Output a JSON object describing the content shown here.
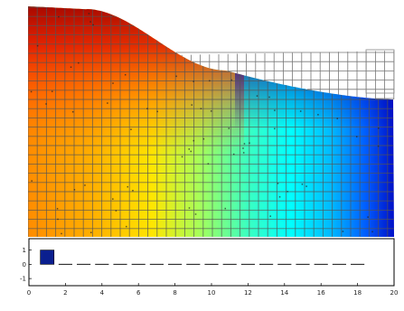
{
  "main_plot": {
    "colormap": "jet",
    "grid_color": "#555555",
    "background": "#ffffff"
  },
  "bar_plot": {
    "bar_color": "#0a1f8f",
    "dash_color": "#111111",
    "y_ticks": [
      "1",
      "0",
      "-1"
    ],
    "x_ticks": [
      "0",
      "2",
      "4",
      "6",
      "8",
      "10",
      "12",
      "14",
      "16",
      "18",
      "20"
    ],
    "bar": {
      "x": 1,
      "value": 1
    },
    "xlim": [
      0,
      20
    ],
    "ylim": [
      -1.5,
      1.8
    ]
  }
}
